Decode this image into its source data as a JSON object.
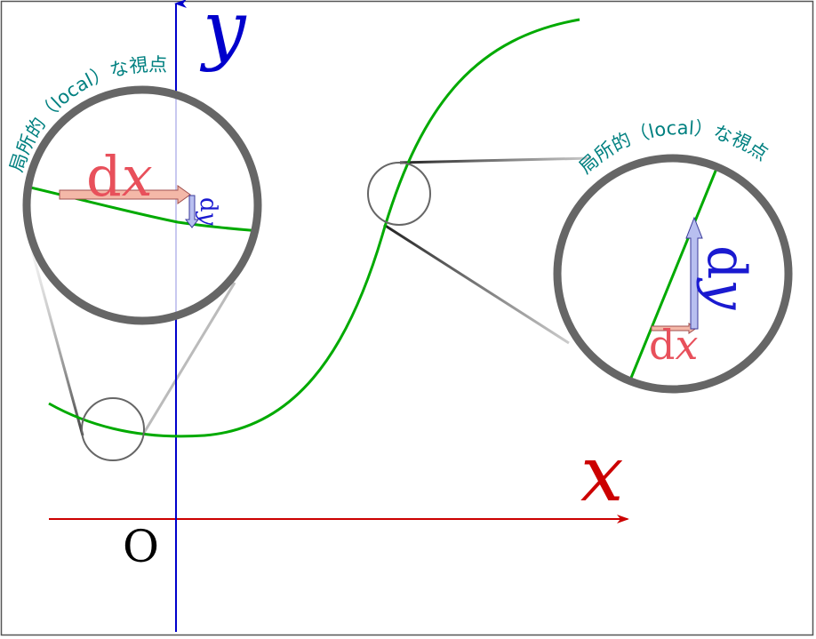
{
  "axes": {
    "x_label": "x",
    "y_label": "y",
    "origin_label": "O"
  },
  "left_zoom": {
    "caption": "局所的（local）な視点",
    "dx_label": "dx",
    "dy_label": "dy"
  },
  "right_zoom": {
    "caption": "局所的（local）な視点",
    "dx_label": "dx",
    "dy_label": "dy"
  },
  "colors": {
    "curve": "#00aa00",
    "x_axis": "#cc0000",
    "y_axis": "#0000cc",
    "lens_ring": "#666666",
    "caption": "#008080",
    "dx_text": "#e8505b",
    "dy_text": "#1a1ad0",
    "dx_arrow_fill": "#f4b8a8",
    "dy_arrow_fill": "#b8bff0"
  }
}
